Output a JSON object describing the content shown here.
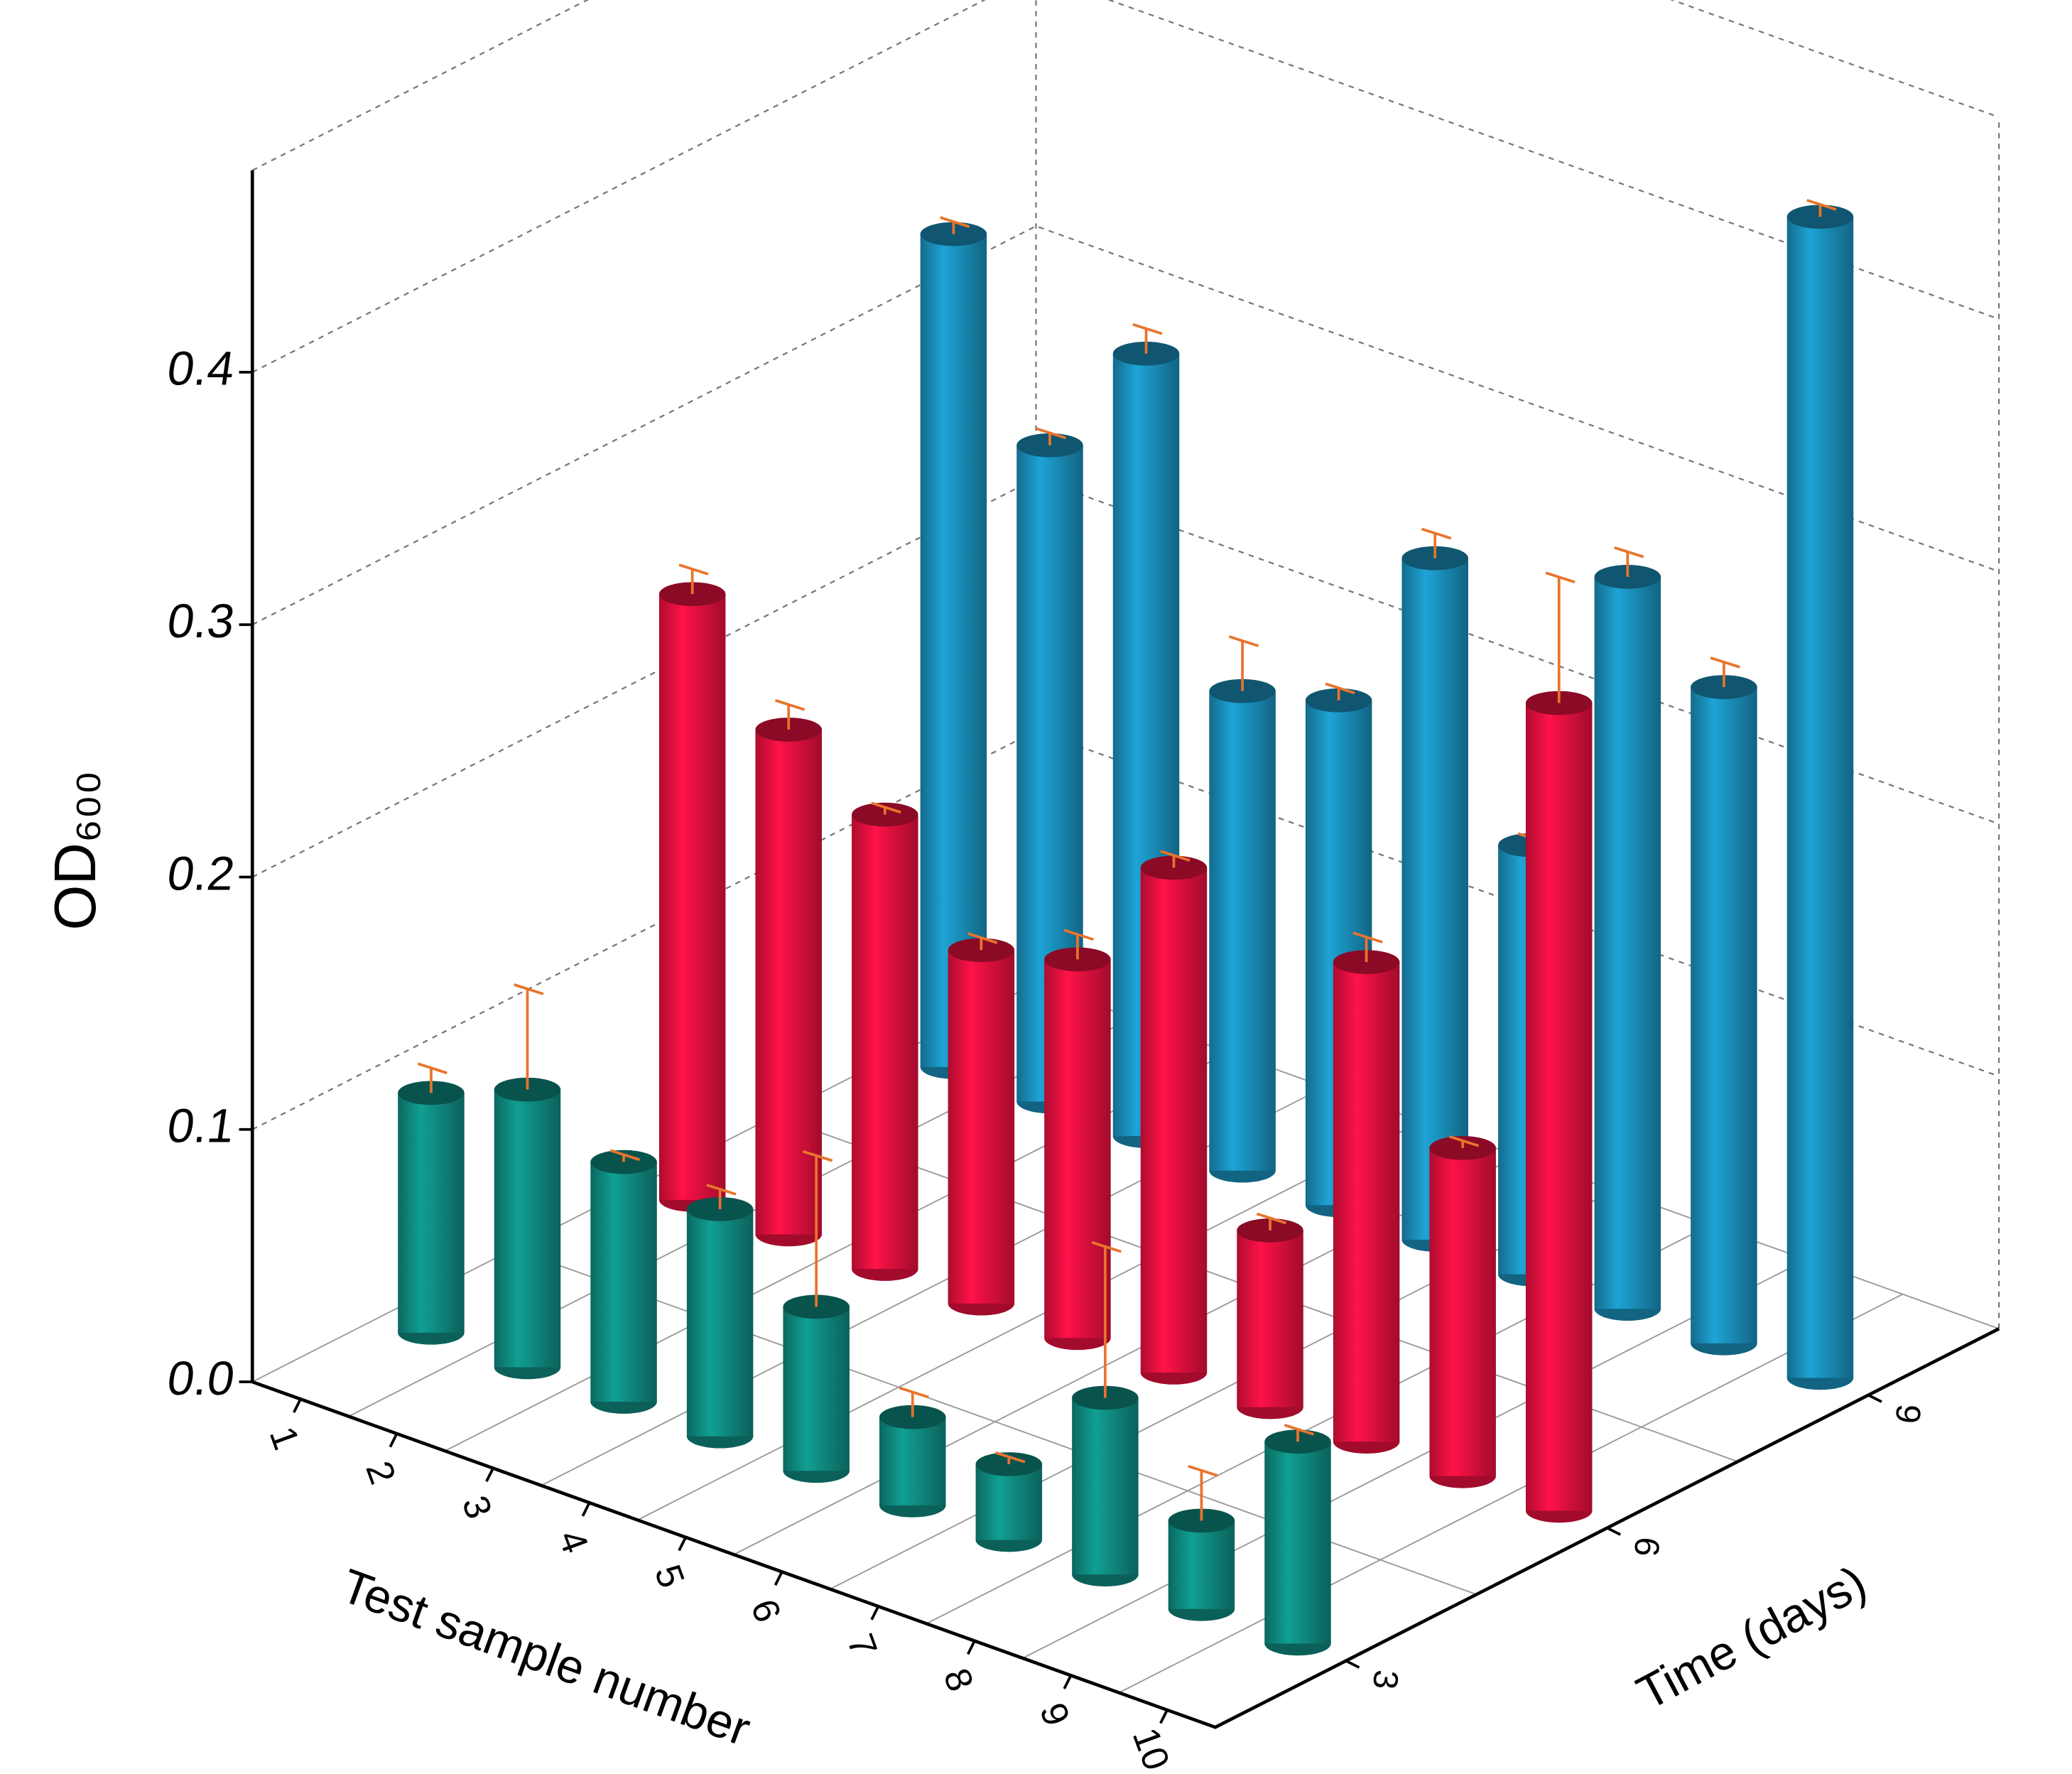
{
  "chart_data": {
    "type": "bar3d",
    "xlabel": "Test sample number",
    "ylabel": "OD₆₀₀",
    "zlabel": "Time (days)",
    "categories": [
      "1",
      "2",
      "3",
      "4",
      "5",
      "6",
      "7",
      "8",
      "9",
      "10"
    ],
    "series": [
      {
        "name": "3",
        "color": "#0f8a80",
        "values": [
          0.095,
          0.11,
          0.095,
          0.09,
          0.065,
          0.035,
          0.03,
          0.07,
          0.035,
          0.08
        ],
        "errors": [
          0.01,
          0.04,
          0.003,
          0.008,
          0.06,
          0.01,
          0.003,
          0.06,
          0.02,
          0.005
        ]
      },
      {
        "name": "6",
        "color": "#e8103f",
        "values": [
          0.24,
          0.2,
          0.18,
          0.14,
          0.15,
          0.2,
          0.07,
          0.19,
          0.13,
          0.32
        ],
        "errors": [
          0.01,
          0.01,
          0.003,
          0.005,
          0.01,
          0.005,
          0.005,
          0.01,
          0.003,
          0.05
        ]
      },
      {
        "name": "9",
        "color": "#1a8fba",
        "values": [
          0.33,
          0.26,
          0.31,
          0.19,
          0.2,
          0.27,
          0.17,
          0.29,
          0.26,
          0.46
        ],
        "errors": [
          0.005,
          0.005,
          0.01,
          0.02,
          0.005,
          0.01,
          0.003,
          0.01,
          0.01,
          0.005
        ]
      }
    ],
    "ylim": [
      0,
      0.48
    ],
    "yticks": [
      {
        "value": 0,
        "label": "0.0"
      },
      0.1,
      0.2,
      0.3,
      0.4
    ],
    "grid": true,
    "error_color": "#e8742c"
  }
}
